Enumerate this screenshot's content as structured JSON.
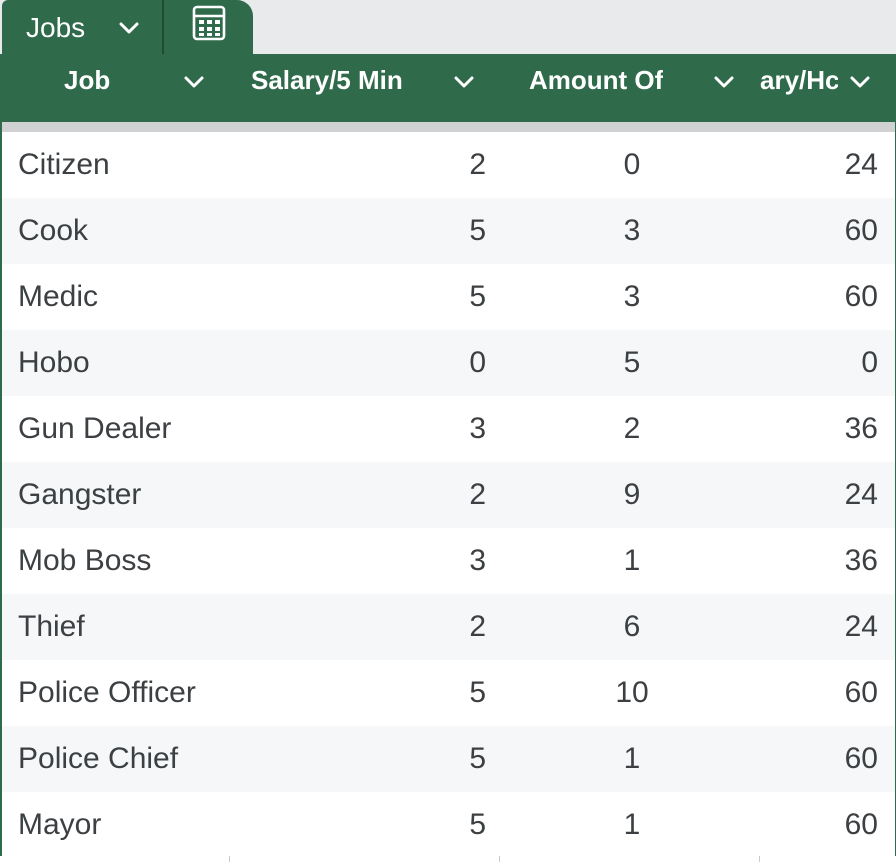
{
  "tabs": {
    "active_label": "Jobs"
  },
  "table": {
    "columns": [
      {
        "label": "Job"
      },
      {
        "label": "Salary/5 Min"
      },
      {
        "label": "Amount Of"
      },
      {
        "label": "ary/Hc"
      }
    ],
    "rows": [
      {
        "job": "Citizen",
        "salary": "2",
        "amount": "0",
        "hour": "24"
      },
      {
        "job": "Cook",
        "salary": "5",
        "amount": "3",
        "hour": "60"
      },
      {
        "job": "Medic",
        "salary": "5",
        "amount": "3",
        "hour": "60"
      },
      {
        "job": "Hobo",
        "salary": "0",
        "amount": "5",
        "hour": "0"
      },
      {
        "job": "Gun Dealer",
        "salary": "3",
        "amount": "2",
        "hour": "36"
      },
      {
        "job": "Gangster",
        "salary": "2",
        "amount": "9",
        "hour": "24"
      },
      {
        "job": "Mob Boss",
        "salary": "3",
        "amount": "1",
        "hour": "36"
      },
      {
        "job": "Thief",
        "salary": "2",
        "amount": "6",
        "hour": "24"
      },
      {
        "job": "Police Officer",
        "salary": "5",
        "amount": "10",
        "hour": "60"
      },
      {
        "job": "Police Chief",
        "salary": "5",
        "amount": "1",
        "hour": "60"
      },
      {
        "job": "Mayor",
        "salary": "5",
        "amount": "1",
        "hour": "60"
      }
    ]
  },
  "colors": {
    "header_green": "#2f6b4b",
    "row_alt": "#f6f7f8",
    "text": "#3c4043"
  },
  "icons": {
    "tab_dropdown": "chevron-down-icon",
    "calculator": "calculator-icon",
    "column_filter": "chevron-down-icon"
  }
}
